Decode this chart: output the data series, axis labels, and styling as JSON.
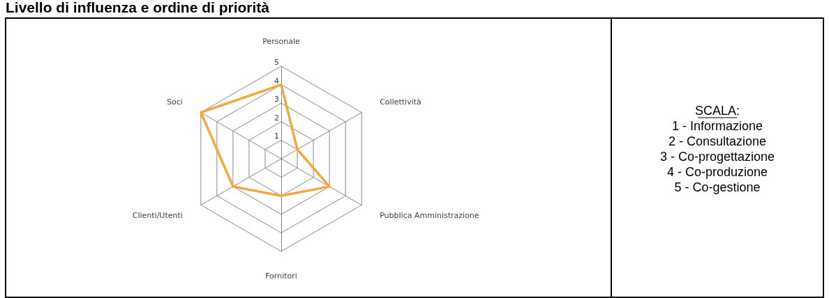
{
  "chart_data": {
    "type": "radar",
    "title": "Livello di influenza e ordine di priorità",
    "categories": [
      "Personale",
      "Collettività",
      "Pubblica Amministrazione",
      "Fornitori",
      "Clienti/Utenti",
      "Soci"
    ],
    "series": [
      {
        "color": "#f5a83a",
        "values": [
          4,
          1,
          3,
          2,
          3,
          5
        ]
      }
    ],
    "ylim": [
      0,
      5
    ],
    "yticks": [
      1,
      2,
      3,
      4,
      5
    ],
    "grid": true,
    "marker": "none",
    "line_style": "solid",
    "annotations": [
      "SCALA:",
      "1 - Informazione",
      "2 - Consultazione",
      "3 - Co-progettazione",
      "4 - Co-produzione",
      "5 - Co-gestione"
    ]
  }
}
